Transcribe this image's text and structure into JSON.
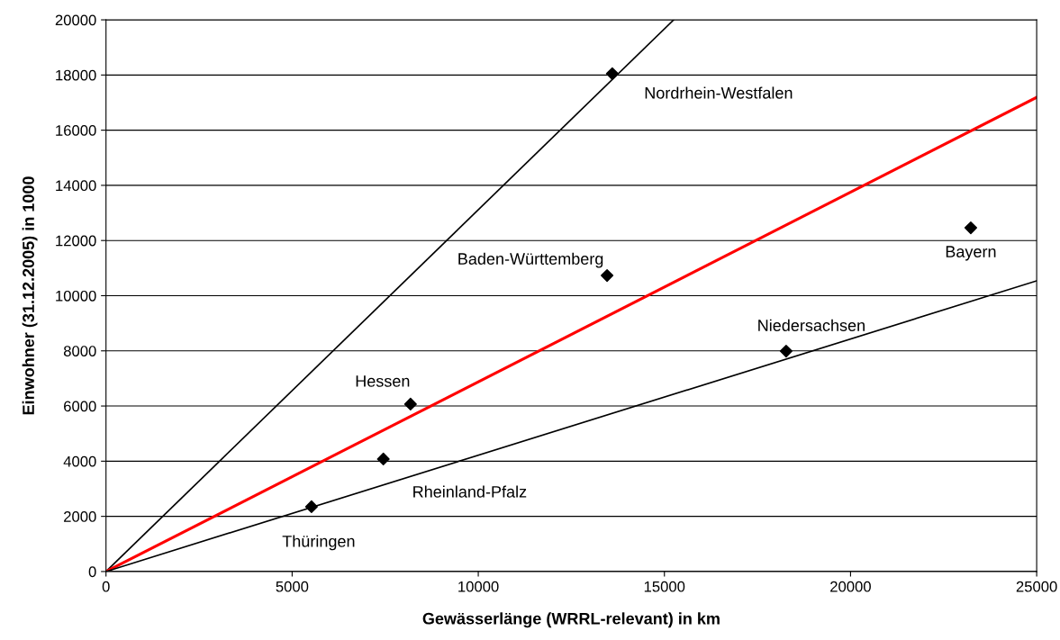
{
  "chart_data": {
    "type": "scatter",
    "xlabel": "Gewässerlänge (WRRL-relevant) in km",
    "ylabel": "Einwohner (31.12.2005) in 1000",
    "xlim": [
      0,
      25000
    ],
    "ylim": [
      0,
      20000
    ],
    "xticks": [
      0,
      5000,
      10000,
      15000,
      20000,
      25000
    ],
    "yticks": [
      0,
      2000,
      4000,
      6000,
      8000,
      10000,
      12000,
      14000,
      16000,
      18000,
      20000
    ],
    "grid": "y",
    "marker": "diamond",
    "series": [
      {
        "type": "line",
        "color": "#000000",
        "x": [
          0,
          15250
        ],
        "values": [
          0,
          20000
        ],
        "marker": "none"
      },
      {
        "type": "line",
        "color": "#ff0000",
        "x": [
          0,
          25000
        ],
        "values": [
          0,
          17190
        ],
        "marker": "none"
      },
      {
        "type": "line",
        "color": "#000000",
        "x": [
          0,
          25000
        ],
        "values": [
          0,
          10540
        ],
        "marker": "none"
      },
      {
        "color": "#000000",
        "x": [
          13600,
          13460,
          23230,
          18270,
          8180,
          7450,
          5520
        ],
        "values": [
          18050,
          10730,
          12460,
          7990,
          6070,
          4080,
          2350
        ]
      }
    ],
    "annotations": [
      {
        "text": "Nordrhein-Westfalen",
        "x": 13600,
        "y": 18050
      },
      {
        "text": "Baden-Württemberg",
        "x": 13460,
        "y": 10730
      },
      {
        "text": "Bayern",
        "x": 23230,
        "y": 12460
      },
      {
        "text": "Niedersachsen",
        "x": 18270,
        "y": 7990
      },
      {
        "text": "Hessen",
        "x": 8180,
        "y": 6070
      },
      {
        "text": "Rheinland-Pfalz",
        "x": 7450,
        "y": 4080
      },
      {
        "text": "Thüringen",
        "x": 5520,
        "y": 2350
      }
    ]
  }
}
